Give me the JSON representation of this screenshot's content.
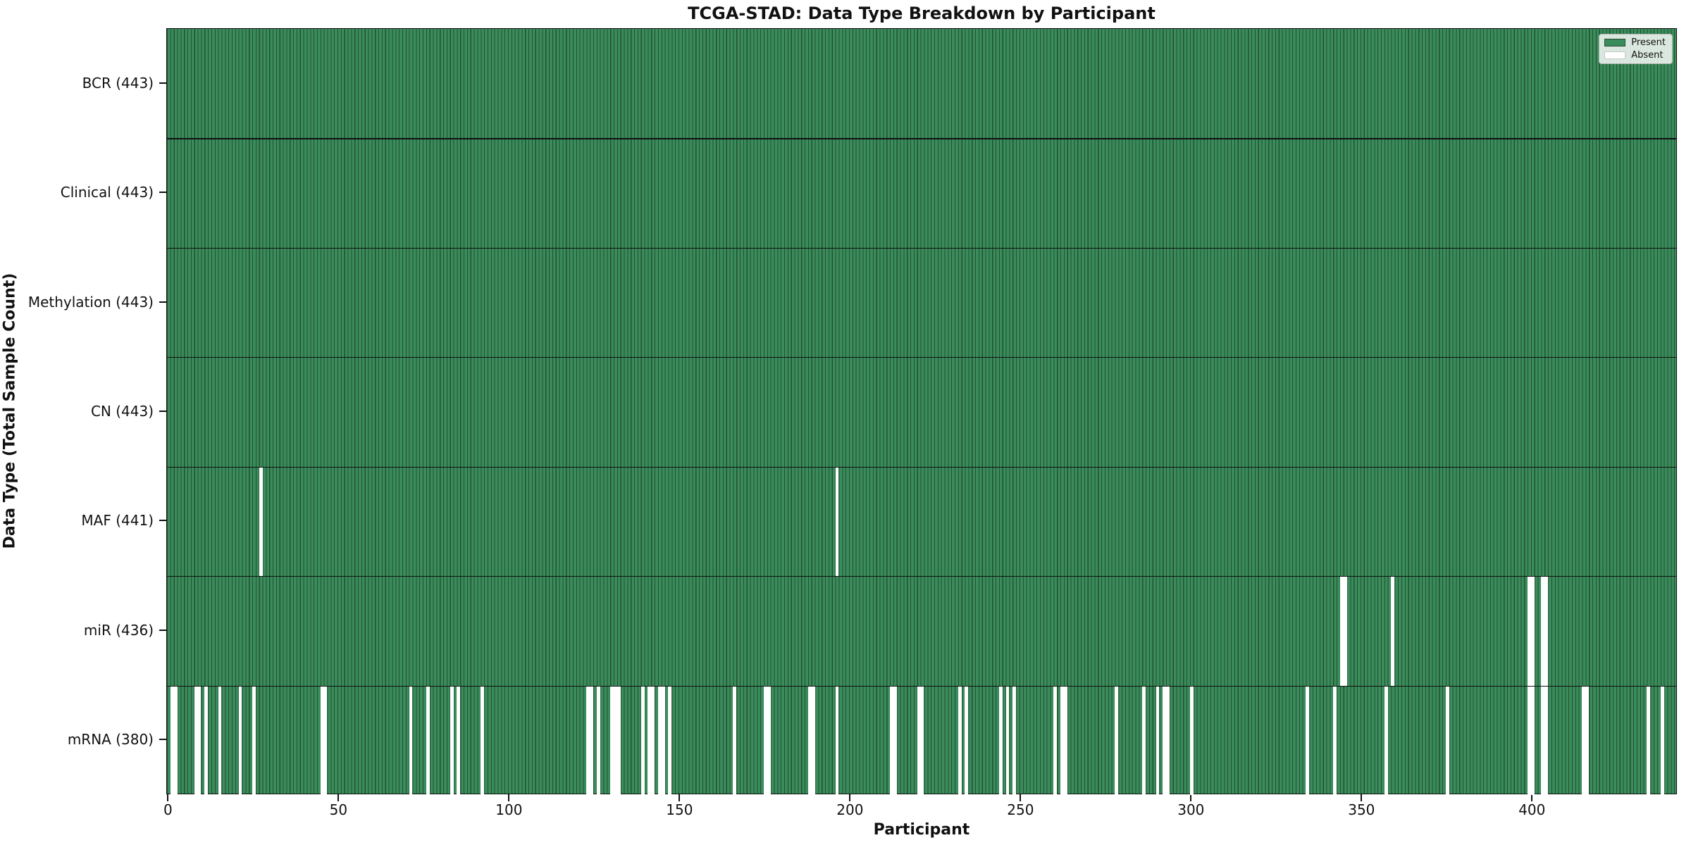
{
  "title": "TCGA-STAD: Data Type Breakdown by Participant",
  "axes": {
    "xlabel": "Participant",
    "ylabel": "Data Type (Total Sample Count)"
  },
  "legend": {
    "present_label": "Present",
    "absent_label": "Absent"
  },
  "colors": {
    "present_fill": "#3a8c5c",
    "bar_edge": "#23502f",
    "absent_fill": "#ffffff",
    "axis": "#111111"
  },
  "chart_data": {
    "type": "heatmap",
    "title": "TCGA-STAD: Data Type Breakdown by Participant",
    "xlabel": "Participant",
    "ylabel": "Data Type (Total Sample Count)",
    "legend_entries": [
      "Present",
      "Absent"
    ],
    "legend_position": "upper right",
    "grid": false,
    "n_participants": 443,
    "xlim": [
      0,
      443
    ],
    "x_ticks": [
      0,
      50,
      100,
      150,
      200,
      250,
      300,
      350,
      400
    ],
    "cell_values": {
      "present": 1,
      "absent": 0
    },
    "rows": [
      {
        "label": "BCR (443)",
        "data_type": "BCR",
        "total_sample_count": 443,
        "absent_participants": []
      },
      {
        "label": "Clinical (443)",
        "data_type": "Clinical",
        "total_sample_count": 443,
        "absent_participants": []
      },
      {
        "label": "Methylation (443)",
        "data_type": "Methylation",
        "total_sample_count": 443,
        "absent_participants": []
      },
      {
        "label": "CN (443)",
        "data_type": "CN",
        "total_sample_count": 443,
        "absent_participants": []
      },
      {
        "label": "MAF (441)",
        "data_type": "MAF",
        "total_sample_count": 441,
        "absent_participants": [
          27,
          196
        ]
      },
      {
        "label": "miR (436)",
        "data_type": "miR",
        "total_sample_count": 436,
        "absent_participants": [
          344,
          345,
          359,
          399,
          400,
          403,
          404
        ]
      },
      {
        "label": "mRNA (380)",
        "data_type": "mRNA",
        "total_sample_count": 380,
        "absent_participants": [
          1,
          2,
          8,
          9,
          11,
          15,
          21,
          25,
          45,
          46,
          71,
          76,
          83,
          85,
          92,
          123,
          124,
          126,
          130,
          131,
          132,
          139,
          141,
          142,
          144,
          145,
          147,
          166,
          175,
          176,
          188,
          189,
          196,
          212,
          213,
          220,
          221,
          232,
          234,
          244,
          246,
          248,
          260,
          262,
          263,
          278,
          286,
          290,
          292,
          293,
          300,
          334,
          342,
          357,
          375,
          399,
          400,
          403,
          404,
          415,
          416,
          434,
          438
        ]
      }
    ]
  }
}
